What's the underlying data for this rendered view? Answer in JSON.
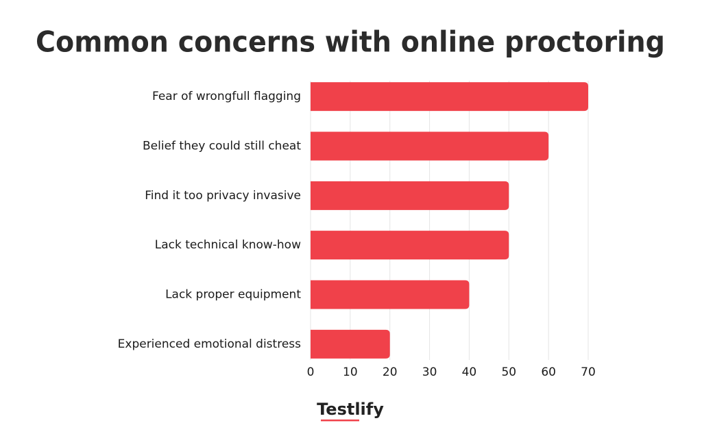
{
  "chart_data": {
    "type": "bar",
    "orientation": "horizontal",
    "title": "Common concerns with online proctoring",
    "categories": [
      "Fear of wrongfull flagging",
      "Belief they could still cheat",
      "Find it too privacy invasive",
      "Lack technical know-how",
      "Lack proper equipment",
      "Experienced emotional distress"
    ],
    "values": [
      70,
      60,
      50,
      50,
      40,
      20
    ],
    "color": "#f0414a",
    "xlim": [
      0,
      70
    ],
    "xticks": [
      0,
      10,
      20,
      30,
      40,
      50,
      60,
      70
    ],
    "grid": true
  },
  "footer": {
    "logo": "Testlify"
  }
}
